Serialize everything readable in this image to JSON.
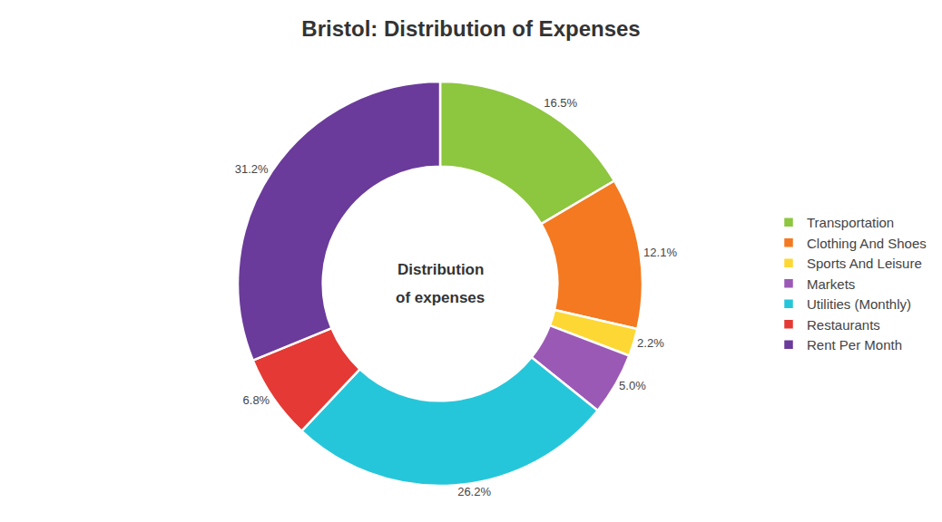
{
  "chart_data": {
    "type": "donut",
    "title": "Bristol: Distribution of Expenses",
    "annotations": [
      "Distribution",
      "of expenses"
    ],
    "categories": [
      "Transportation",
      "Clothing And Shoes",
      "Sports And Leisure",
      "Markets",
      "Utilities (Monthly)",
      "Restaurants",
      "Rent Per Month"
    ],
    "values": [
      16.5,
      12.1,
      2.2,
      5.0,
      26.2,
      6.8,
      31.2
    ],
    "value_labels": [
      "16.5%",
      "12.1%",
      "2.2%",
      "5.0%",
      "26.2%",
      "6.8%",
      "31.2%"
    ],
    "colors": [
      "#8DC63F",
      "#F47920",
      "#FDD835",
      "#9B59B6",
      "#26C6DA",
      "#E53935",
      "#6A3B9A"
    ],
    "data_labels": true,
    "legend": "right"
  }
}
